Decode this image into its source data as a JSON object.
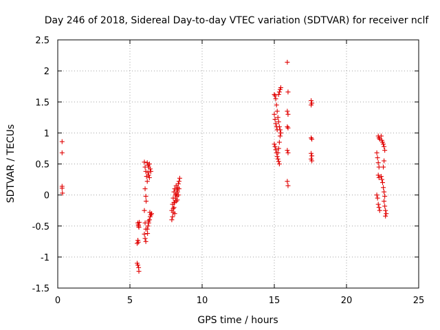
{
  "chart_data": {
    "type": "scatter",
    "title": "Day 246 of 2018, Sidereal Day-to-day VTEC variation (SDTVAR) for receiver nclf",
    "xlabel": "GPS time / hours",
    "ylabel": "SDTVAR / TECUs",
    "xlim": [
      0,
      25
    ],
    "ylim": [
      -1.5,
      2.5
    ],
    "xticks": [
      0,
      5,
      10,
      15,
      20,
      25
    ],
    "xtick_labels": [
      "0",
      "5",
      "10",
      "15",
      "20",
      "25"
    ],
    "yticks": [
      -1.5,
      -1,
      -0.5,
      0,
      0.5,
      1,
      1.5,
      2,
      2.5
    ],
    "ytick_labels": [
      "-1.5",
      "-1",
      "-0.5",
      "0",
      "0.5",
      "1",
      "1.5",
      "2",
      "2.5"
    ],
    "grid": true,
    "marker": "+",
    "color": "#e00000",
    "series": [
      {
        "name": "SDTVAR",
        "points": [
          [
            0.3,
            0.86
          ],
          [
            0.3,
            0.68
          ],
          [
            0.3,
            0.14
          ],
          [
            0.3,
            0.11
          ],
          [
            0.32,
            0.03
          ],
          [
            5.5,
            -1.1
          ],
          [
            5.55,
            -1.13
          ],
          [
            5.6,
            -1.17
          ],
          [
            5.62,
            -1.23
          ],
          [
            5.55,
            -0.73
          ],
          [
            5.58,
            -0.76
          ],
          [
            5.5,
            -0.78
          ],
          [
            5.55,
            -0.45
          ],
          [
            5.58,
            -0.48
          ],
          [
            5.6,
            -0.5
          ],
          [
            5.62,
            -0.52
          ],
          [
            5.65,
            -0.44
          ],
          [
            6.0,
            0.53
          ],
          [
            6.05,
            0.45
          ],
          [
            6.1,
            0.38
          ],
          [
            6.15,
            0.3
          ],
          [
            6.2,
            0.22
          ],
          [
            6.05,
            0.1
          ],
          [
            6.1,
            -0.02
          ],
          [
            6.12,
            -0.1
          ],
          [
            6.0,
            -0.25
          ],
          [
            6.05,
            -0.45
          ],
          [
            6.1,
            -0.55
          ],
          [
            6.0,
            -0.63
          ],
          [
            6.05,
            -0.7
          ],
          [
            6.1,
            -0.75
          ],
          [
            6.2,
            0.52
          ],
          [
            6.25,
            0.48
          ],
          [
            6.3,
            0.45
          ],
          [
            6.35,
            0.5
          ],
          [
            6.4,
            0.42
          ],
          [
            6.45,
            0.38
          ],
          [
            6.3,
            0.32
          ],
          [
            6.35,
            0.28
          ],
          [
            6.25,
            0.36
          ],
          [
            6.2,
            -0.55
          ],
          [
            6.25,
            -0.5
          ],
          [
            6.3,
            -0.45
          ],
          [
            6.35,
            -0.4
          ],
          [
            6.4,
            -0.35
          ],
          [
            6.45,
            -0.32
          ],
          [
            6.5,
            -0.3
          ],
          [
            6.38,
            -0.28
          ],
          [
            6.28,
            -0.42
          ],
          [
            6.22,
            -0.62
          ],
          [
            7.9,
            -0.4
          ],
          [
            7.95,
            -0.35
          ],
          [
            8.0,
            -0.28
          ],
          [
            8.05,
            -0.2
          ],
          [
            8.1,
            -0.12
          ],
          [
            8.15,
            -0.05
          ],
          [
            8.2,
            0.02
          ],
          [
            8.25,
            0.08
          ],
          [
            8.3,
            0.12
          ],
          [
            8.35,
            0.18
          ],
          [
            8.4,
            0.22
          ],
          [
            8.45,
            0.27
          ],
          [
            7.95,
            -0.15
          ],
          [
            8.0,
            -0.05
          ],
          [
            8.05,
            0.05
          ],
          [
            8.1,
            0.1
          ],
          [
            8.15,
            0.0
          ],
          [
            8.2,
            -0.1
          ],
          [
            8.25,
            -0.02
          ],
          [
            8.0,
            -0.22
          ],
          [
            8.3,
            0.05
          ],
          [
            8.35,
            0.0
          ],
          [
            8.1,
            -0.3
          ],
          [
            8.2,
            0.15
          ],
          [
            7.9,
            -0.25
          ],
          [
            8.4,
            0.1
          ],
          [
            8.05,
            -0.12
          ],
          [
            8.28,
            -0.08
          ],
          [
            15.0,
            1.62
          ],
          [
            15.05,
            1.6
          ],
          [
            15.1,
            1.55
          ],
          [
            15.15,
            1.45
          ],
          [
            15.2,
            1.35
          ],
          [
            15.0,
            1.3
          ],
          [
            15.05,
            1.22
          ],
          [
            15.1,
            1.15
          ],
          [
            15.15,
            1.1
          ],
          [
            15.2,
            1.05
          ],
          [
            15.0,
            0.82
          ],
          [
            15.05,
            0.78
          ],
          [
            15.1,
            0.73
          ],
          [
            15.15,
            0.68
          ],
          [
            15.2,
            0.62
          ],
          [
            15.25,
            0.58
          ],
          [
            15.3,
            0.54
          ],
          [
            15.35,
            0.5
          ],
          [
            15.3,
            1.62
          ],
          [
            15.35,
            1.66
          ],
          [
            15.4,
            1.7
          ],
          [
            15.45,
            1.73
          ],
          [
            15.25,
            1.25
          ],
          [
            15.3,
            1.18
          ],
          [
            15.35,
            1.1
          ],
          [
            15.4,
            1.05
          ],
          [
            15.45,
            1.0
          ],
          [
            15.4,
            0.95
          ],
          [
            15.35,
            0.85
          ],
          [
            15.3,
            0.75
          ],
          [
            15.25,
            0.68
          ],
          [
            15.9,
            2.14
          ],
          [
            15.95,
            1.66
          ],
          [
            15.9,
            1.35
          ],
          [
            15.95,
            1.3
          ],
          [
            15.9,
            1.1
          ],
          [
            15.95,
            1.08
          ],
          [
            15.9,
            0.72
          ],
          [
            15.95,
            0.68
          ],
          [
            15.9,
            0.22
          ],
          [
            15.95,
            0.15
          ],
          [
            17.55,
            1.52
          ],
          [
            17.6,
            1.48
          ],
          [
            17.55,
            1.45
          ],
          [
            17.55,
            0.92
          ],
          [
            17.6,
            0.9
          ],
          [
            17.55,
            0.67
          ],
          [
            17.6,
            0.63
          ],
          [
            17.55,
            0.58
          ],
          [
            17.6,
            0.55
          ],
          [
            22.1,
            0.68
          ],
          [
            22.15,
            0.6
          ],
          [
            22.2,
            0.52
          ],
          [
            22.25,
            0.45
          ],
          [
            22.2,
            0.32
          ],
          [
            22.25,
            0.28
          ],
          [
            22.1,
            0.0
          ],
          [
            22.15,
            -0.05
          ],
          [
            22.2,
            -0.15
          ],
          [
            22.25,
            -0.2
          ],
          [
            22.3,
            -0.25
          ],
          [
            22.2,
            0.95
          ],
          [
            22.25,
            0.92
          ],
          [
            22.3,
            0.9
          ],
          [
            22.4,
            0.95
          ],
          [
            22.45,
            0.88
          ],
          [
            22.5,
            0.85
          ],
          [
            22.55,
            0.82
          ],
          [
            22.6,
            0.78
          ],
          [
            22.65,
            0.72
          ],
          [
            22.4,
            0.3
          ],
          [
            22.45,
            0.25
          ],
          [
            22.5,
            0.2
          ],
          [
            22.55,
            0.12
          ],
          [
            22.6,
            0.05
          ],
          [
            22.65,
            -0.02
          ],
          [
            22.6,
            -0.1
          ],
          [
            22.65,
            -0.18
          ],
          [
            22.7,
            -0.25
          ],
          [
            22.75,
            -0.3
          ],
          [
            22.7,
            -0.34
          ],
          [
            22.55,
            0.45
          ],
          [
            22.6,
            0.55
          ]
        ]
      }
    ]
  }
}
